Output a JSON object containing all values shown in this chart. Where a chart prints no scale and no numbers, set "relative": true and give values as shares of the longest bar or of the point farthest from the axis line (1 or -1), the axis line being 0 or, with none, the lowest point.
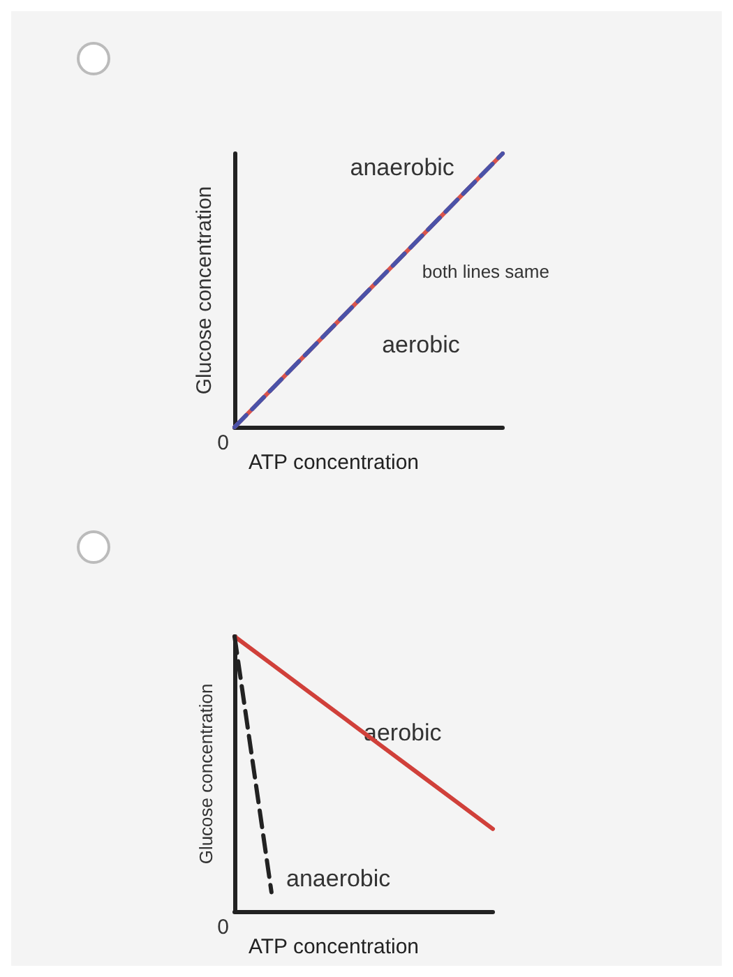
{
  "chart_data": [
    {
      "type": "line",
      "relative": true,
      "xlabel": "ATP concentration",
      "ylabel": "Glucose concentration",
      "categories": [
        null,
        null
      ],
      "annotations": [
        "0",
        "both lines same"
      ],
      "series": [
        {
          "name": "aerobic",
          "color": "#d9544c",
          "line_style": "solid",
          "values": [
            0,
            1
          ]
        },
        {
          "name": "anaerobic",
          "color": "#4a52a8",
          "line_style": "dashed",
          "values": [
            0,
            1
          ]
        }
      ],
      "grid": false,
      "legend": false,
      "marker": "none"
    },
    {
      "type": "line",
      "relative": true,
      "xlabel": "ATP concentration",
      "ylabel": "Glucose concentration",
      "categories": [
        null,
        null,
        null,
        null,
        null,
        null,
        null,
        null
      ],
      "annotations": [
        "0"
      ],
      "series": [
        {
          "name": "aerobic",
          "color": "#d0403a",
          "line_style": "solid",
          "values": [
            1,
            0.9,
            0.8,
            0.7,
            0.6,
            0.5,
            0.4,
            0.3
          ]
        },
        {
          "name": "anaerobic",
          "color": "#222222",
          "line_style": "dashed",
          "values": [
            1,
            0.07,
            null,
            null,
            null,
            null,
            null,
            null
          ]
        }
      ],
      "grid": false,
      "legend": false,
      "marker": "none"
    }
  ]
}
